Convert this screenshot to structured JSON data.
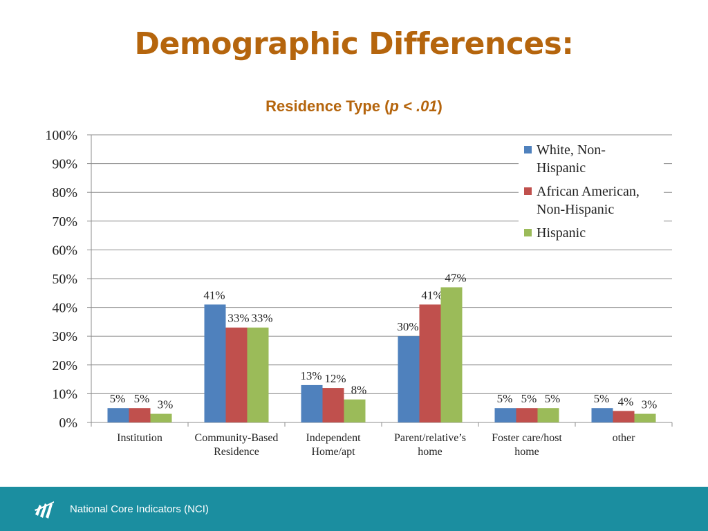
{
  "slide": {
    "title": "Demographic Differences:",
    "footer_text": "National Core Indicators (NCI)"
  },
  "chart_heading": {
    "prefix": "Residence Type (",
    "italic": "p < .01",
    "suffix": ")"
  },
  "chart_data": {
    "type": "bar",
    "title": "Residence Type (p < .01)",
    "categories": [
      [
        "Institution"
      ],
      [
        "Community-Based",
        "Residence"
      ],
      [
        "Independent",
        "Home/apt"
      ],
      [
        "Parent/relative’s",
        "home"
      ],
      [
        "Foster care/host",
        "home"
      ],
      [
        "other"
      ]
    ],
    "series": [
      {
        "name": "White, Non-Hispanic",
        "legend_lines": [
          "White, Non-",
          "Hispanic"
        ],
        "color": "#4f81bd",
        "values": [
          5,
          41,
          13,
          30,
          5,
          5
        ],
        "labels": [
          "5%",
          "41%",
          "13%",
          "30%",
          "5%",
          "5%"
        ]
      },
      {
        "name": "African American, Non-Hispanic",
        "legend_lines": [
          "African American,",
          "Non-Hispanic"
        ],
        "color": "#c0504d",
        "values": [
          5,
          33,
          12,
          41,
          5,
          4
        ],
        "labels": [
          "5%",
          "33%",
          "12%",
          "41%",
          "5%",
          "4%"
        ]
      },
      {
        "name": "Hispanic",
        "legend_lines": [
          "Hispanic"
        ],
        "color": "#9bbb59",
        "values": [
          3,
          33,
          8,
          47,
          5,
          3
        ],
        "labels": [
          "3%",
          "33%",
          "8%",
          "47%",
          "5%",
          "3%"
        ]
      }
    ],
    "ylim": [
      0,
      100
    ],
    "yticks": [
      0,
      10,
      20,
      30,
      40,
      50,
      60,
      70,
      80,
      90,
      100
    ],
    "ytick_labels": [
      "0%",
      "10%",
      "20%",
      "30%",
      "40%",
      "50%",
      "60%",
      "70%",
      "80%",
      "90%",
      "100%"
    ],
    "grid": true,
    "legend_position": "top-right",
    "xlabel": "",
    "ylabel": ""
  },
  "colors": {
    "title": "#b5650d",
    "footer_bg": "#1b8ea0",
    "gridline": "#8c8c8c"
  },
  "icons": {
    "footer_logo": "nci-logo-icon"
  }
}
